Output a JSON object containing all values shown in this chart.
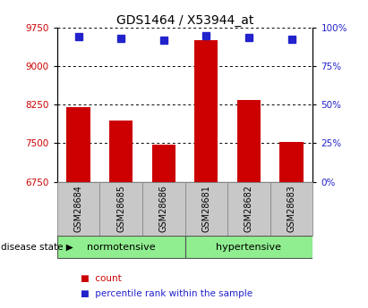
{
  "title": "GDS1464 / X53944_at",
  "samples": [
    "GSM28684",
    "GSM28685",
    "GSM28686",
    "GSM28681",
    "GSM28682",
    "GSM28683"
  ],
  "bar_values": [
    8200,
    7950,
    7480,
    9500,
    8350,
    7520
  ],
  "percentile_values": [
    94,
    93,
    92,
    95,
    93.5,
    92.5
  ],
  "y_min": 6750,
  "y_max": 9750,
  "y_ticks": [
    6750,
    7500,
    8250,
    9000,
    9750
  ],
  "right_y_ticks": [
    0,
    25,
    50,
    75,
    100
  ],
  "bar_color": "#cc0000",
  "dot_color": "#2222cc",
  "group1_label": "normotensive",
  "group2_label": "hypertensive",
  "group_bg_color": "#90ee90",
  "tick_bg_color": "#c8c8c8",
  "legend_count_label": "count",
  "legend_pct_label": "percentile rank within the sample",
  "disease_state_label": "disease state"
}
